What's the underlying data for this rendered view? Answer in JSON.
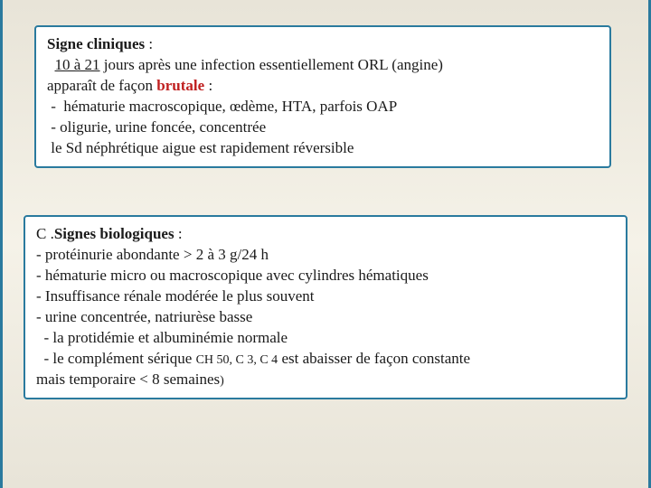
{
  "box1": {
    "title_bold": "Signe cliniques",
    "title_suffix": " :",
    "line2_pre": "  ",
    "line2_underline": "10 à 21",
    "line2_post": " jours après une infection essentiellement ORL (angine)",
    "line3_pre": "apparaît de façon ",
    "line3_brutale": "brutale",
    "line3_post": " :",
    "line4": " -  hématurie macroscopique, œdème, HTA, parfois OAP",
    "line5": " - oligurie, urine foncée, concentrée",
    "line6": " le Sd néphrétique aigue est rapidement réversible"
  },
  "box2": {
    "line1_pre": "C .",
    "line1_bold": "Signes biologiques",
    "line1_post": " :",
    "line2": "- protéinurie abondante > 2 à 3 g/24 h",
    "line3": "- hématurie micro ou macroscopique avec cylindres hématiques",
    "line4": "- Insuffisance rénale modérée le plus souvent",
    "line5": "- urine concentrée, natriurèse basse",
    "line6": "  - la protidémie et albuminémie normale",
    "line7_pre": "  - le complément sérique ",
    "line7_small": "CH 50, C 3, C 4",
    "line7_post": " est abaisser de façon constante",
    "line8_pre": "mais temporaire  < 8  semaines",
    "line8_paren": ")"
  },
  "colors": {
    "border": "#2a7a9e",
    "background": "#f5f2e8",
    "text": "#1a1a1a",
    "red": "#c02020"
  }
}
